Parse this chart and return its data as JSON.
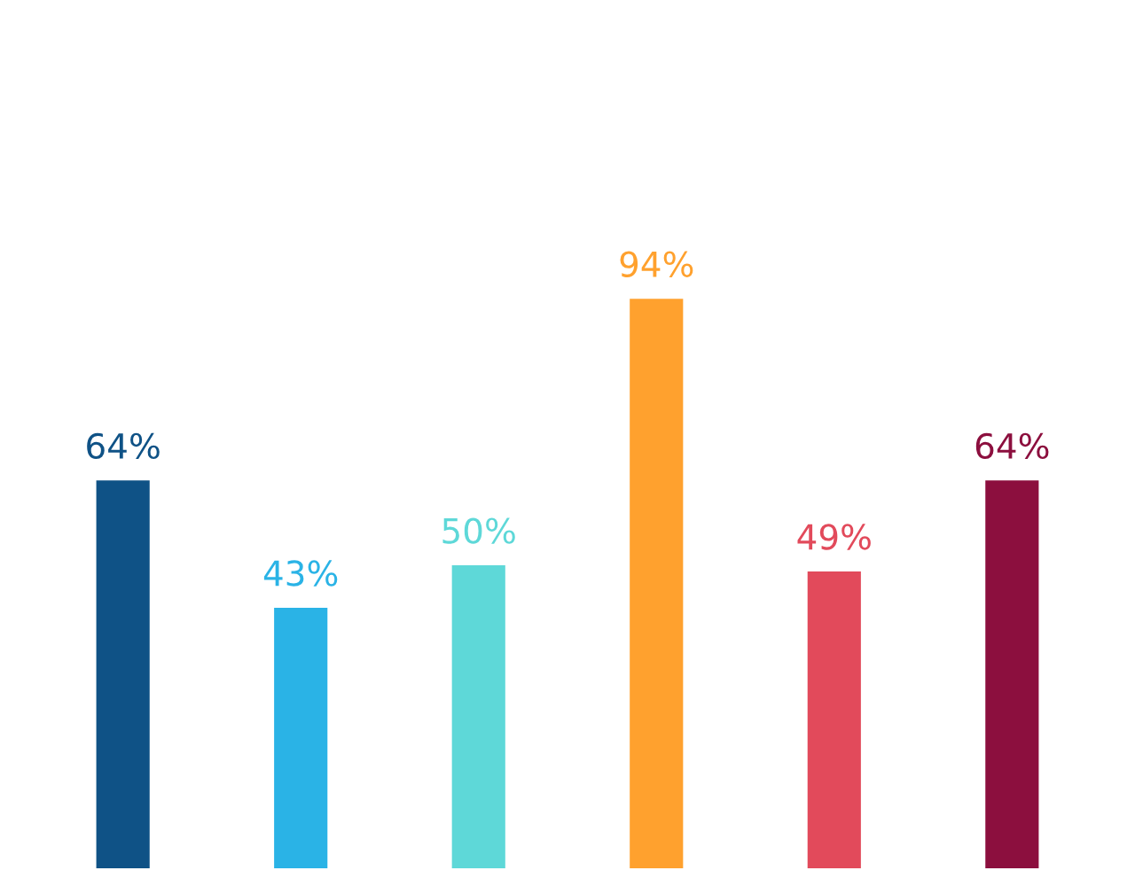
{
  "chart_data": {
    "type": "bar",
    "categories": [
      null,
      null,
      null,
      null,
      null,
      null
    ],
    "values": [
      64,
      43,
      50,
      94,
      49,
      64
    ],
    "colors": [
      "#0f5286",
      "#2ab3e6",
      "#5ed8d8",
      "#ffa12e",
      "#e24a5b",
      "#8c0f3e"
    ],
    "value_labels": [
      "64%",
      "43%",
      "50%",
      "94%",
      "49%",
      "64%"
    ]
  }
}
